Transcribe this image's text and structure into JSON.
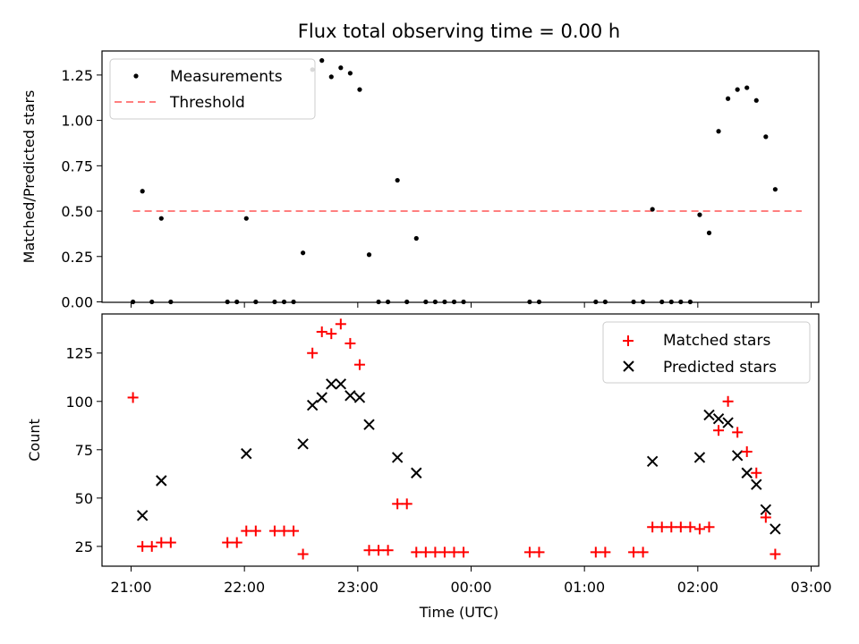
{
  "title": "Flux total observing time = 0.00 h",
  "chart_data": [
    {
      "type": "scatter",
      "ylabel": "Matched/Predicted stars",
      "xlabel": "",
      "xlim": [
        "21:00",
        "03:00"
      ],
      "ylim": [
        0,
        1.38
      ],
      "x_tick_labels_shown": false,
      "y_ticks": [
        0.0,
        0.25,
        0.5,
        0.75,
        1.0,
        1.25
      ],
      "y_tick_labels": [
        "0.00",
        "0.25",
        "0.50",
        "0.75",
        "1.00",
        "1.25"
      ],
      "legend_position": "top-left",
      "series": [
        {
          "name": "Measurements",
          "marker": "dot",
          "color": "#000000",
          "points": [
            [
              "21:01",
              0.0
            ],
            [
              "21:06",
              0.61
            ],
            [
              "21:11",
              0.0
            ],
            [
              "21:16",
              0.46
            ],
            [
              "21:21",
              0.0
            ],
            [
              "21:51",
              0.0
            ],
            [
              "21:56",
              0.0
            ],
            [
              "22:01",
              0.46
            ],
            [
              "22:06",
              0.0
            ],
            [
              "22:16",
              0.0
            ],
            [
              "22:21",
              0.0
            ],
            [
              "22:26",
              0.0
            ],
            [
              "22:31",
              0.27
            ],
            [
              "22:36",
              1.28
            ],
            [
              "22:41",
              1.33
            ],
            [
              "22:46",
              1.24
            ],
            [
              "22:51",
              1.29
            ],
            [
              "22:56",
              1.26
            ],
            [
              "23:01",
              1.17
            ],
            [
              "23:06",
              0.26
            ],
            [
              "23:11",
              0.0
            ],
            [
              "23:16",
              0.0
            ],
            [
              "23:21",
              0.67
            ],
            [
              "23:26",
              0.0
            ],
            [
              "23:31",
              0.35
            ],
            [
              "23:36",
              0.0
            ],
            [
              "23:41",
              0.0
            ],
            [
              "23:46",
              0.0
            ],
            [
              "23:51",
              0.0
            ],
            [
              "23:56",
              0.0
            ],
            [
              "00:31",
              0.0
            ],
            [
              "00:36",
              0.0
            ],
            [
              "01:06",
              0.0
            ],
            [
              "01:11",
              0.0
            ],
            [
              "01:26",
              0.0
            ],
            [
              "01:31",
              0.0
            ],
            [
              "01:36",
              0.51
            ],
            [
              "01:41",
              0.0
            ],
            [
              "01:46",
              0.0
            ],
            [
              "01:51",
              0.0
            ],
            [
              "01:56",
              0.0
            ],
            [
              "02:01",
              0.48
            ],
            [
              "02:06",
              0.38
            ],
            [
              "02:11",
              0.94
            ],
            [
              "02:16",
              1.12
            ],
            [
              "02:21",
              1.17
            ],
            [
              "02:26",
              1.18
            ],
            [
              "02:31",
              1.11
            ],
            [
              "02:36",
              0.91
            ],
            [
              "02:41",
              0.62
            ]
          ]
        },
        {
          "name": "Threshold",
          "style": "dashed",
          "color": "#ff7f7f",
          "points": [
            [
              "21:01",
              0.5
            ],
            [
              "02:55",
              0.5
            ]
          ]
        }
      ]
    },
    {
      "type": "scatter",
      "xlabel": "Time (UTC)",
      "ylabel": "Count",
      "xlim": [
        "21:00",
        "03:00"
      ],
      "x_tick_labels": [
        "21:00",
        "22:00",
        "23:00",
        "00:00",
        "01:00",
        "02:00",
        "03:00"
      ],
      "ylim": [
        15,
        145
      ],
      "y_ticks": [
        25,
        50,
        75,
        100,
        125
      ],
      "y_tick_labels": [
        "25",
        "50",
        "75",
        "100",
        "125"
      ],
      "legend_position": "top-right",
      "series": [
        {
          "name": "Matched stars",
          "marker": "plus",
          "color": "#ff0000",
          "points": [
            [
              "21:01",
              102
            ],
            [
              "21:06",
              25
            ],
            [
              "21:11",
              25
            ],
            [
              "21:16",
              27
            ],
            [
              "21:21",
              27
            ],
            [
              "21:51",
              27
            ],
            [
              "21:56",
              27
            ],
            [
              "22:01",
              33
            ],
            [
              "22:06",
              33
            ],
            [
              "22:16",
              33
            ],
            [
              "22:21",
              33
            ],
            [
              "22:26",
              33
            ],
            [
              "22:31",
              21
            ],
            [
              "22:36",
              125
            ],
            [
              "22:41",
              136
            ],
            [
              "22:46",
              135
            ],
            [
              "22:51",
              140
            ],
            [
              "22:56",
              130
            ],
            [
              "23:01",
              119
            ],
            [
              "23:06",
              23
            ],
            [
              "23:11",
              23
            ],
            [
              "23:16",
              23
            ],
            [
              "23:21",
              47
            ],
            [
              "23:26",
              47
            ],
            [
              "23:31",
              22
            ],
            [
              "23:36",
              22
            ],
            [
              "23:41",
              22
            ],
            [
              "23:46",
              22
            ],
            [
              "23:51",
              22
            ],
            [
              "23:56",
              22
            ],
            [
              "00:31",
              22
            ],
            [
              "00:36",
              22
            ],
            [
              "01:06",
              22
            ],
            [
              "01:11",
              22
            ],
            [
              "01:26",
              22
            ],
            [
              "01:31",
              22
            ],
            [
              "01:36",
              35
            ],
            [
              "01:41",
              35
            ],
            [
              "01:46",
              35
            ],
            [
              "01:51",
              35
            ],
            [
              "01:56",
              35
            ],
            [
              "02:01",
              34
            ],
            [
              "02:06",
              35
            ],
            [
              "02:11",
              85
            ],
            [
              "02:16",
              100
            ],
            [
              "02:21",
              84
            ],
            [
              "02:26",
              74
            ],
            [
              "02:31",
              63
            ],
            [
              "02:36",
              40
            ],
            [
              "02:41",
              21
            ]
          ]
        },
        {
          "name": "Predicted stars",
          "marker": "x",
          "color": "#000000",
          "points": [
            [
              "21:06",
              41
            ],
            [
              "21:16",
              59
            ],
            [
              "22:01",
              73
            ],
            [
              "22:31",
              78
            ],
            [
              "22:36",
              98
            ],
            [
              "22:41",
              102
            ],
            [
              "22:46",
              109
            ],
            [
              "22:51",
              109
            ],
            [
              "22:56",
              103
            ],
            [
              "23:01",
              102
            ],
            [
              "23:06",
              88
            ],
            [
              "23:21",
              71
            ],
            [
              "23:31",
              63
            ],
            [
              "01:36",
              69
            ],
            [
              "02:01",
              71
            ],
            [
              "02:06",
              93
            ],
            [
              "02:11",
              91
            ],
            [
              "02:16",
              89
            ],
            [
              "02:21",
              72
            ],
            [
              "02:26",
              63
            ],
            [
              "02:31",
              57
            ],
            [
              "02:36",
              44
            ],
            [
              "02:41",
              34
            ]
          ]
        }
      ]
    }
  ]
}
